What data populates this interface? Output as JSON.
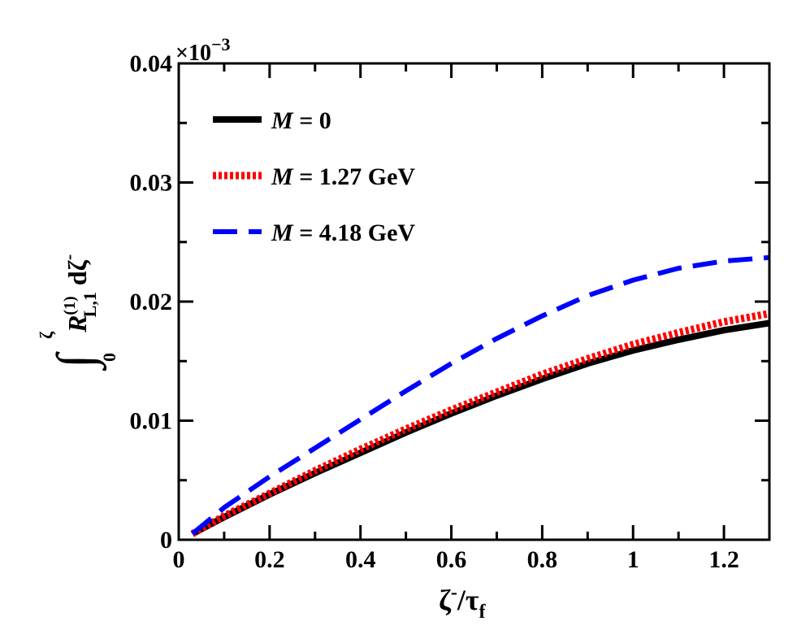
{
  "chart_data": {
    "type": "line",
    "title": "",
    "xlabel": {
      "main": "ζ",
      "sup": "-",
      "slash": "/τ",
      "sub": "f"
    },
    "ylabel": {
      "integral_upper": "ζ",
      "integral_lower": "0",
      "symbol": "R",
      "sup": "(1)",
      "sub": "L,1",
      "tail": "dζ",
      "tail_sup": "-"
    },
    "y_multiplier": {
      "base": "×10",
      "exp": "−3"
    },
    "xlim": [
      0,
      1.3
    ],
    "ylim": [
      0,
      0.04
    ],
    "xticks": [
      0,
      0.2,
      0.4,
      0.6,
      0.8,
      1.0,
      1.2
    ],
    "xtick_labels": [
      "0",
      "0.2",
      "0.4",
      "0.6",
      "0.8",
      "1",
      "1.2"
    ],
    "yticks": [
      0,
      0.01,
      0.02,
      0.03,
      0.04
    ],
    "ytick_labels": [
      "0",
      "0.01",
      "0.02",
      "0.03",
      "0.04"
    ],
    "grid": false,
    "legend_position": "top-left",
    "x": [
      0.03,
      0.1,
      0.2,
      0.3,
      0.4,
      0.5,
      0.6,
      0.7,
      0.8,
      0.9,
      1.0,
      1.1,
      1.2,
      1.3
    ],
    "series": [
      {
        "name": "M = 0",
        "label_var": "M",
        "label_rest": " = 0",
        "color": "#000000",
        "style": "solid",
        "values": [
          0.0005,
          0.0019,
          0.0038,
          0.0056,
          0.0073,
          0.009,
          0.0106,
          0.0121,
          0.0135,
          0.0148,
          0.0159,
          0.0168,
          0.0176,
          0.0182
        ]
      },
      {
        "name": "M = 1.27 GeV",
        "label_var": "M",
        "label_rest": " = 1.27 GeV",
        "color": "#ff0000",
        "style": "dotted",
        "values": [
          0.0005,
          0.002,
          0.0039,
          0.0058,
          0.0076,
          0.0093,
          0.0109,
          0.0124,
          0.0139,
          0.0152,
          0.0164,
          0.0174,
          0.0183,
          0.019
        ]
      },
      {
        "name": "M = 4.18 GeV",
        "label_var": "M",
        "label_rest": " = 4.18 GeV",
        "color": "#0000ff",
        "style": "dashed",
        "values": [
          0.0005,
          0.0027,
          0.0053,
          0.0077,
          0.0101,
          0.0125,
          0.0148,
          0.0169,
          0.0188,
          0.0205,
          0.0218,
          0.0228,
          0.0234,
          0.0237
        ]
      }
    ]
  }
}
